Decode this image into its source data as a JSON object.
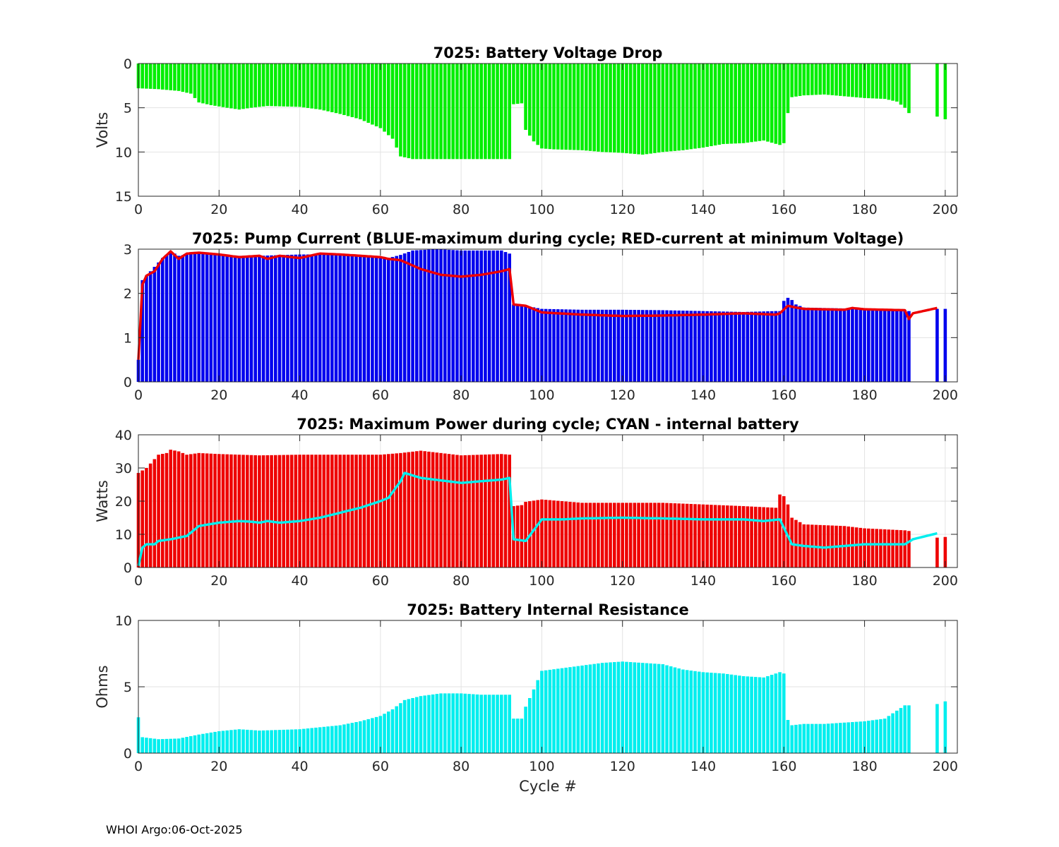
{
  "footer": "WHOI Argo:06-Oct-2025",
  "colors": {
    "green": "#00ee00",
    "blue": "#0000ee",
    "red": "#ee0000",
    "cyan": "#00eeee",
    "grid": "#e3e3e3",
    "axis": "#262626"
  },
  "chart_data": [
    {
      "id": "voltage",
      "type": "bar",
      "title": "7025: Battery Voltage Drop",
      "ylabel": "Volts",
      "xlabel": "",
      "xlim": [
        0,
        203
      ],
      "ylim": [
        0,
        15
      ],
      "y_reversed": true,
      "xticks": [
        "0",
        "20",
        "40",
        "60",
        "80",
        "100",
        "120",
        "140",
        "160",
        "180",
        "200"
      ],
      "yticks": [
        "0",
        "5",
        "10",
        "15"
      ],
      "bar_color": "green",
      "series_knots": [
        [
          0,
          2.8
        ],
        [
          5,
          2.9
        ],
        [
          10,
          3.1
        ],
        [
          13,
          3.4
        ],
        [
          15,
          4.4
        ],
        [
          18,
          4.7
        ],
        [
          22,
          5.0
        ],
        [
          25,
          5.2
        ],
        [
          28,
          5.0
        ],
        [
          32,
          4.8
        ],
        [
          40,
          4.9
        ],
        [
          45,
          5.2
        ],
        [
          50,
          5.7
        ],
        [
          55,
          6.3
        ],
        [
          60,
          7.3
        ],
        [
          63,
          8.5
        ],
        [
          65,
          10.5
        ],
        [
          68,
          10.8
        ],
        [
          92,
          10.8
        ],
        [
          93,
          4.6
        ],
        [
          95,
          4.5
        ],
        [
          96,
          7.5
        ],
        [
          98,
          8.8
        ],
        [
          100,
          9.6
        ],
        [
          103,
          9.7
        ],
        [
          110,
          9.8
        ],
        [
          115,
          10.0
        ],
        [
          120,
          10.1
        ],
        [
          125,
          10.3
        ],
        [
          130,
          10.0
        ],
        [
          135,
          9.8
        ],
        [
          140,
          9.5
        ],
        [
          145,
          9.1
        ],
        [
          150,
          9.0
        ],
        [
          155,
          8.7
        ],
        [
          159,
          9.2
        ],
        [
          160,
          9.0
        ],
        [
          161,
          5.6
        ],
        [
          162,
          3.8
        ],
        [
          165,
          3.6
        ],
        [
          170,
          3.5
        ],
        [
          180,
          3.9
        ],
        [
          185,
          4.0
        ],
        [
          188,
          4.3
        ],
        [
          190,
          5.0
        ],
        [
          191,
          5.6
        ]
      ],
      "extra_bars": [
        [
          198,
          6.0
        ],
        [
          200,
          6.3
        ]
      ],
      "point_count": 192
    },
    {
      "id": "current",
      "type": "bar",
      "title": "7025: Pump Current (BLUE-maximum during cycle; RED-current at minimum Voltage)",
      "ylabel": "",
      "xlabel": "",
      "xlim": [
        0,
        203
      ],
      "ylim": [
        0,
        3
      ],
      "y_reversed": false,
      "xticks": [
        "0",
        "20",
        "40",
        "60",
        "80",
        "100",
        "120",
        "140",
        "160",
        "180",
        "200"
      ],
      "yticks": [
        "0",
        "1",
        "2",
        "3"
      ],
      "bar_color": "blue",
      "series_knots": [
        [
          0,
          0.5
        ],
        [
          1,
          2.3
        ],
        [
          2,
          2.4
        ],
        [
          4,
          2.6
        ],
        [
          6,
          2.8
        ],
        [
          8,
          2.95
        ],
        [
          10,
          2.85
        ],
        [
          15,
          2.92
        ],
        [
          25,
          2.85
        ],
        [
          30,
          2.85
        ],
        [
          40,
          2.88
        ],
        [
          50,
          2.88
        ],
        [
          60,
          2.82
        ],
        [
          62,
          2.8
        ],
        [
          65,
          2.87
        ],
        [
          68,
          2.97
        ],
        [
          74,
          3.0
        ],
        [
          80,
          2.97
        ],
        [
          90,
          2.97
        ],
        [
          92,
          2.9
        ],
        [
          93,
          1.75
        ],
        [
          96,
          1.72
        ],
        [
          100,
          1.65
        ],
        [
          110,
          1.63
        ],
        [
          120,
          1.63
        ],
        [
          130,
          1.62
        ],
        [
          140,
          1.6
        ],
        [
          150,
          1.58
        ],
        [
          158,
          1.6
        ],
        [
          159,
          1.6
        ],
        [
          160,
          1.83
        ],
        [
          161,
          1.9
        ],
        [
          162,
          1.85
        ],
        [
          163,
          1.75
        ],
        [
          165,
          1.68
        ],
        [
          180,
          1.65
        ],
        [
          190,
          1.62
        ],
        [
          191,
          1.6
        ]
      ],
      "extra_bars": [
        [
          198,
          1.65
        ],
        [
          200,
          1.65
        ]
      ],
      "line_color": "red",
      "line_knots": [
        [
          0,
          0.5
        ],
        [
          1,
          2.2
        ],
        [
          2,
          2.4
        ],
        [
          4,
          2.5
        ],
        [
          6,
          2.78
        ],
        [
          8,
          2.95
        ],
        [
          10,
          2.78
        ],
        [
          12,
          2.9
        ],
        [
          15,
          2.92
        ],
        [
          20,
          2.88
        ],
        [
          25,
          2.82
        ],
        [
          30,
          2.85
        ],
        [
          32,
          2.78
        ],
        [
          35,
          2.85
        ],
        [
          40,
          2.8
        ],
        [
          45,
          2.9
        ],
        [
          50,
          2.88
        ],
        [
          60,
          2.82
        ],
        [
          62,
          2.78
        ],
        [
          65,
          2.75
        ],
        [
          70,
          2.55
        ],
        [
          75,
          2.42
        ],
        [
          80,
          2.38
        ],
        [
          85,
          2.42
        ],
        [
          90,
          2.5
        ],
        [
          92,
          2.55
        ],
        [
          93,
          1.75
        ],
        [
          96,
          1.72
        ],
        [
          100,
          1.57
        ],
        [
          110,
          1.52
        ],
        [
          120,
          1.49
        ],
        [
          130,
          1.5
        ],
        [
          140,
          1.52
        ],
        [
          150,
          1.55
        ],
        [
          158,
          1.52
        ],
        [
          159,
          1.55
        ],
        [
          161,
          1.72
        ],
        [
          163,
          1.68
        ],
        [
          165,
          1.65
        ],
        [
          175,
          1.63
        ],
        [
          177,
          1.67
        ],
        [
          180,
          1.64
        ],
        [
          190,
          1.62
        ],
        [
          191,
          1.42
        ],
        [
          192,
          1.55
        ],
        [
          198,
          1.67
        ]
      ],
      "point_count": 192
    },
    {
      "id": "power",
      "type": "bar",
      "title": "7025: Maximum Power during cycle; CYAN - internal battery",
      "ylabel": "Watts",
      "xlabel": "",
      "xlim": [
        0,
        203
      ],
      "ylim": [
        0,
        40
      ],
      "y_reversed": false,
      "xticks": [
        "0",
        "20",
        "40",
        "60",
        "80",
        "100",
        "120",
        "140",
        "160",
        "180",
        "200"
      ],
      "yticks": [
        "0",
        "10",
        "20",
        "30",
        "40"
      ],
      "bar_color": "red",
      "series_knots": [
        [
          0,
          28.5
        ],
        [
          2,
          30.0
        ],
        [
          5,
          34.0
        ],
        [
          7,
          34.5
        ],
        [
          8,
          35.5
        ],
        [
          10,
          35.0
        ],
        [
          12,
          34.0
        ],
        [
          15,
          34.5
        ],
        [
          20,
          34.2
        ],
        [
          30,
          33.8
        ],
        [
          40,
          34.0
        ],
        [
          50,
          34.0
        ],
        [
          60,
          34.0
        ],
        [
          65,
          34.5
        ],
        [
          70,
          35.2
        ],
        [
          75,
          34.5
        ],
        [
          80,
          33.8
        ],
        [
          90,
          34.2
        ],
        [
          92,
          34.0
        ],
        [
          93,
          18.5
        ],
        [
          95,
          18.8
        ],
        [
          96,
          19.8
        ],
        [
          100,
          20.5
        ],
        [
          110,
          19.5
        ],
        [
          120,
          19.5
        ],
        [
          130,
          19.5
        ],
        [
          140,
          19.0
        ],
        [
          150,
          18.5
        ],
        [
          158,
          18.0
        ],
        [
          159,
          22.0
        ],
        [
          160,
          21.5
        ],
        [
          161,
          19.0
        ],
        [
          162,
          15.0
        ],
        [
          165,
          13.0
        ],
        [
          175,
          12.5
        ],
        [
          180,
          11.8
        ],
        [
          190,
          11.2
        ],
        [
          191,
          11.0
        ]
      ],
      "extra_bars": [
        [
          198,
          9.0
        ],
        [
          200,
          9.2
        ]
      ],
      "line_color": "cyan",
      "line_knots": [
        [
          0,
          0.5
        ],
        [
          1,
          6.0
        ],
        [
          2,
          7.0
        ],
        [
          4,
          7.0
        ],
        [
          5,
          8.0
        ],
        [
          8,
          8.5
        ],
        [
          10,
          9.0
        ],
        [
          12,
          9.5
        ],
        [
          15,
          12.5
        ],
        [
          20,
          13.5
        ],
        [
          25,
          14.0
        ],
        [
          28,
          13.8
        ],
        [
          30,
          13.5
        ],
        [
          32,
          14.0
        ],
        [
          35,
          13.5
        ],
        [
          40,
          14.0
        ],
        [
          45,
          15.0
        ],
        [
          50,
          16.5
        ],
        [
          55,
          18.0
        ],
        [
          60,
          20.0
        ],
        [
          62,
          21.0
        ],
        [
          65,
          26.0
        ],
        [
          66,
          28.5
        ],
        [
          70,
          27.0
        ],
        [
          80,
          25.5
        ],
        [
          90,
          26.5
        ],
        [
          92,
          27.0
        ],
        [
          93,
          8.5
        ],
        [
          96,
          8.0
        ],
        [
          100,
          14.5
        ],
        [
          105,
          14.5
        ],
        [
          110,
          14.8
        ],
        [
          120,
          15.0
        ],
        [
          130,
          14.8
        ],
        [
          140,
          14.5
        ],
        [
          150,
          14.5
        ],
        [
          155,
          14.0
        ],
        [
          159,
          14.5
        ],
        [
          162,
          7.0
        ],
        [
          165,
          6.5
        ],
        [
          170,
          6.0
        ],
        [
          175,
          6.5
        ],
        [
          180,
          7.0
        ],
        [
          190,
          7.0
        ],
        [
          192,
          8.5
        ],
        [
          198,
          10.3
        ]
      ],
      "point_count": 192
    },
    {
      "id": "resistance",
      "type": "bar",
      "title": "7025: Battery Internal Resistance",
      "ylabel": "Ohms",
      "xlabel": "Cycle #",
      "xlim": [
        0,
        203
      ],
      "ylim": [
        0,
        10
      ],
      "y_reversed": false,
      "xticks": [
        "0",
        "20",
        "40",
        "60",
        "80",
        "100",
        "120",
        "140",
        "160",
        "180",
        "200"
      ],
      "yticks": [
        "0",
        "5",
        "10"
      ],
      "bar_color": "cyan",
      "series_knots": [
        [
          0,
          2.7
        ],
        [
          1,
          1.2
        ],
        [
          5,
          1.05
        ],
        [
          10,
          1.1
        ],
        [
          15,
          1.4
        ],
        [
          20,
          1.65
        ],
        [
          25,
          1.8
        ],
        [
          30,
          1.7
        ],
        [
          40,
          1.8
        ],
        [
          50,
          2.1
        ],
        [
          55,
          2.4
        ],
        [
          60,
          2.8
        ],
        [
          63,
          3.3
        ],
        [
          66,
          4.0
        ],
        [
          70,
          4.3
        ],
        [
          75,
          4.5
        ],
        [
          80,
          4.5
        ],
        [
          85,
          4.4
        ],
        [
          92,
          4.4
        ],
        [
          93,
          2.6
        ],
        [
          95,
          2.6
        ],
        [
          96,
          3.5
        ],
        [
          98,
          4.8
        ],
        [
          100,
          6.2
        ],
        [
          105,
          6.4
        ],
        [
          110,
          6.6
        ],
        [
          115,
          6.8
        ],
        [
          120,
          6.9
        ],
        [
          125,
          6.8
        ],
        [
          130,
          6.7
        ],
        [
          135,
          6.3
        ],
        [
          140,
          6.1
        ],
        [
          145,
          6.0
        ],
        [
          150,
          5.8
        ],
        [
          155,
          5.7
        ],
        [
          159,
          6.1
        ],
        [
          160,
          6.0
        ],
        [
          161,
          2.5
        ],
        [
          162,
          2.1
        ],
        [
          165,
          2.2
        ],
        [
          170,
          2.2
        ],
        [
          175,
          2.3
        ],
        [
          180,
          2.4
        ],
        [
          185,
          2.6
        ],
        [
          190,
          3.6
        ],
        [
          191,
          3.6
        ]
      ],
      "extra_bars": [
        [
          198,
          3.7
        ],
        [
          200,
          3.9
        ]
      ],
      "point_count": 192
    }
  ]
}
